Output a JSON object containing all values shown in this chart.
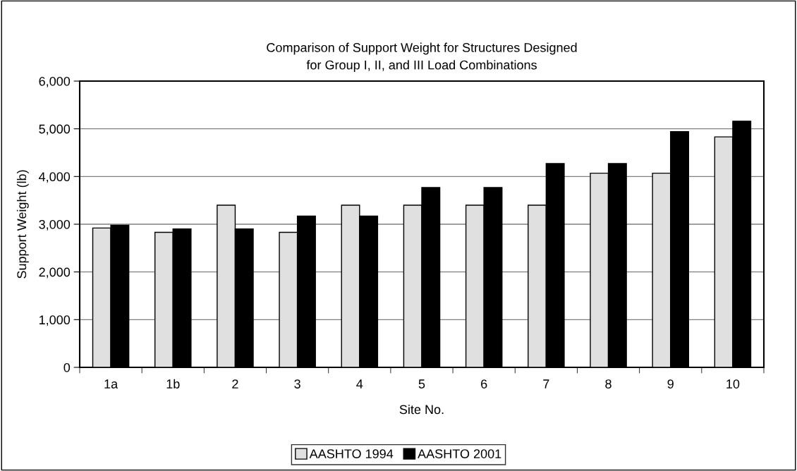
{
  "chart_data": {
    "type": "bar",
    "title": "Comparison of Support Weight for Structures Designed\nfor Group I, II, and III Load Combinations",
    "xlabel": "Site No.",
    "ylabel": "Support Weight (lb)",
    "categories": [
      "1a",
      "1b",
      "2",
      "3",
      "4",
      "5",
      "6",
      "7",
      "8",
      "9",
      "10"
    ],
    "series": [
      {
        "name": "AASHTO 1994",
        "color": "#e0e0e0",
        "values": [
          2920,
          2830,
          3400,
          2830,
          3400,
          3400,
          3400,
          3400,
          4070,
          4070,
          4830
        ]
      },
      {
        "name": "AASHTO 2001",
        "color": "#000000",
        "values": [
          2980,
          2900,
          2900,
          3170,
          3170,
          3770,
          3770,
          4270,
          4270,
          4940,
          5160
        ]
      }
    ],
    "ylim": [
      0,
      6000
    ],
    "yticks": [
      {
        "value": 0,
        "label": "0"
      },
      {
        "value": 1000,
        "label": "1,000"
      },
      {
        "value": 2000,
        "label": "2,000"
      },
      {
        "value": 3000,
        "label": "3,000"
      },
      {
        "value": 4000,
        "label": "4,000"
      },
      {
        "value": 5000,
        "label": "5,000"
      },
      {
        "value": 6000,
        "label": "6,000"
      }
    ],
    "grid": "y",
    "legend": "bottom"
  }
}
